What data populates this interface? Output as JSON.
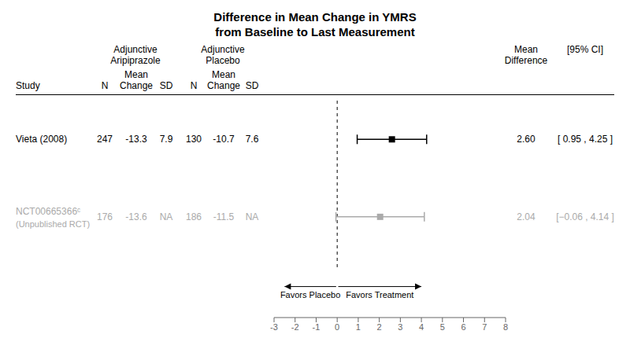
{
  "chart_data": {
    "type": "forest",
    "title": "Difference in Mean Change in YMRS",
    "subtitle": "from Baseline to Last Measurement",
    "category_header": "Study",
    "categories": [
      "Vieta (2008)",
      "NCT00665366ᶜ\n(Unpublished RCT)"
    ],
    "table_groups": [
      {
        "name": "Adjunctive\nAripiprazole",
        "columns": [
          "N",
          "Mean\nChange",
          "SD"
        ],
        "rows": [
          [
            "247",
            "-13.3",
            "7.9"
          ],
          [
            "176",
            "-13.6",
            "NA"
          ]
        ]
      },
      {
        "name": "Adjunctive\nPlacebo",
        "columns": [
          "N",
          "Mean\nChange",
          "SD"
        ],
        "rows": [
          [
            "130",
            "-10.7",
            "7.6"
          ],
          [
            "186",
            "-11.5",
            "NA"
          ]
        ]
      }
    ],
    "value_header": "Mean\nDifference",
    "values": [
      2.6,
      2.04
    ],
    "value_labels": [
      "2.60",
      "2.04"
    ],
    "ci_header": "[95% CI]",
    "ci_low": [
      0.95,
      -0.06
    ],
    "ci_high": [
      4.25,
      4.14
    ],
    "ci_labels": [
      "[ 0.95 , 4.25 ]",
      "[−0.06 , 4.14 ]"
    ],
    "colors": [
      "#000000",
      "#aaaaaa"
    ],
    "xlim": [
      -3,
      8
    ],
    "xticks": [
      -3,
      -2,
      -1,
      0,
      1,
      2,
      3,
      4,
      5,
      6,
      7,
      8
    ],
    "reference_x": 0,
    "annotations": [
      {
        "text": "Favors Placebo",
        "arrow": [
          -0.05,
          -2.5
        ]
      },
      {
        "text": "Favors Treatment",
        "arrow": [
          0.05,
          4.0
        ]
      }
    ]
  }
}
